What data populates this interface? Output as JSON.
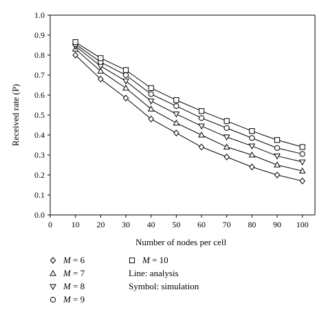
{
  "chart_data": {
    "type": "line",
    "xlabel": "Number of nodes per cell",
    "ylabel": "Received rate (P)",
    "x": [
      10,
      20,
      30,
      40,
      50,
      60,
      70,
      80,
      90,
      100
    ],
    "xticks": [
      "0",
      "10",
      "20",
      "30",
      "40",
      "50",
      "60",
      "70",
      "80",
      "90",
      "100"
    ],
    "yticks": [
      "0.0",
      "0.1",
      "0.2",
      "0.3",
      "0.4",
      "0.5",
      "0.6",
      "0.7",
      "0.8",
      "0.9",
      "1.0"
    ],
    "xlim": [
      0,
      105
    ],
    "ylim": [
      0,
      1.0
    ],
    "grid": false,
    "legend_position": "bottom",
    "series": [
      {
        "name": "M = 6",
        "var": "M",
        "value": "= 6",
        "marker": "diamond",
        "values": [
          0.8,
          0.68,
          0.585,
          0.48,
          0.41,
          0.34,
          0.29,
          0.24,
          0.2,
          0.17
        ]
      },
      {
        "name": "M = 7",
        "var": "M",
        "value": "= 7",
        "marker": "triangle-up",
        "values": [
          0.83,
          0.72,
          0.635,
          0.53,
          0.46,
          0.4,
          0.34,
          0.3,
          0.25,
          0.22
        ]
      },
      {
        "name": "M = 8",
        "var": "M",
        "value": "= 8",
        "marker": "triangle-down",
        "values": [
          0.845,
          0.745,
          0.67,
          0.57,
          0.505,
          0.445,
          0.39,
          0.345,
          0.295,
          0.265
        ]
      },
      {
        "name": "M = 9",
        "var": "M",
        "value": "= 9",
        "marker": "circle",
        "values": [
          0.855,
          0.765,
          0.7,
          0.605,
          0.545,
          0.485,
          0.435,
          0.385,
          0.335,
          0.305
        ]
      },
      {
        "name": "M = 10",
        "var": "M",
        "value": "= 10",
        "marker": "square",
        "values": [
          0.865,
          0.785,
          0.725,
          0.635,
          0.575,
          0.52,
          0.47,
          0.42,
          0.375,
          0.34
        ]
      }
    ],
    "legend_notes": [
      "Line: analysis",
      "Symbol: simulation"
    ]
  },
  "colors": {
    "ink": "#000000",
    "background": "#ffffff"
  }
}
